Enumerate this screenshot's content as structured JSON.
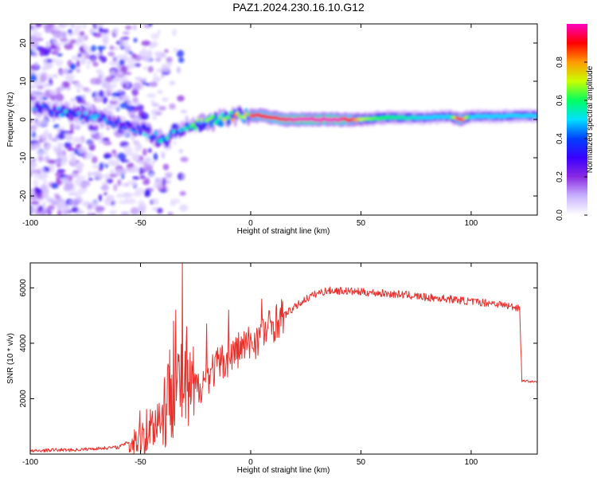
{
  "figure_title": "PAZ1.2024.230.16.10.G12",
  "colors": {
    "spectrum_stops": [
      "#ffffff",
      "#c9b3ff",
      "#8a2be2",
      "#3a00ff",
      "#0040ff",
      "#00e0ff",
      "#00ff60",
      "#c8ff00",
      "#ff9a00",
      "#ff0000",
      "#ff00c0"
    ],
    "snr_line": "#e8302a",
    "axes": "#000000"
  },
  "chart_data": [
    {
      "type": "heatmap",
      "xlabel": "Height of straight line (km)",
      "ylabel": "Frequency (Hz)",
      "xlim": [
        -100,
        130
      ],
      "ylim": [
        -25,
        25
      ],
      "xticks": [
        -100,
        -50,
        0,
        50,
        100
      ],
      "yticks": [
        -20,
        -10,
        0,
        10,
        20
      ],
      "colorbar": {
        "label": "Normalized spectral amplitude",
        "range": [
          0,
          1
        ],
        "ticks": [
          0.0,
          0.2,
          0.4,
          0.6,
          0.8
        ]
      },
      "ridge": {
        "x": [
          -95,
          -85,
          -75,
          -65,
          -55,
          -48,
          -42,
          -38,
          -35,
          -30,
          -25,
          -20,
          -15,
          -10,
          -5,
          0,
          5,
          10,
          15,
          20,
          30,
          40,
          45,
          50,
          60,
          70,
          80,
          90,
          95,
          100,
          110,
          120,
          130
        ],
        "frequency": [
          3,
          2,
          1,
          0,
          -2,
          -3,
          -5,
          -6,
          -3,
          -2,
          -1.5,
          -1,
          0,
          0.5,
          1,
          1,
          1,
          0.5,
          0,
          0,
          0,
          0,
          0,
          0,
          0.5,
          0.5,
          0.5,
          0.8,
          0,
          0.8,
          0.8,
          1,
          1
        ],
        "amplitude": [
          0.4,
          0.45,
          0.45,
          0.4,
          0.4,
          0.45,
          0.5,
          0.5,
          0.45,
          0.55,
          0.6,
          0.65,
          0.7,
          0.7,
          0.75,
          0.85,
          0.9,
          0.9,
          0.95,
          1,
          1,
          1,
          0.9,
          0.7,
          0.6,
          0.55,
          0.5,
          0.5,
          0.95,
          0.5,
          0.5,
          0.5,
          0.5
        ]
      },
      "noise_region": [
        -100,
        -50
      ]
    },
    {
      "type": "line",
      "xlabel": "Height of straight line (km)",
      "ylabel": "SNR (10 * v/v)",
      "xlim": [
        -100,
        130
      ],
      "ylim": [
        0,
        6900
      ],
      "xticks": [
        -100,
        -50,
        0,
        50,
        100
      ],
      "yticks": [
        2000,
        4000,
        6000
      ],
      "series": [
        {
          "x": [
            -100,
            -90,
            -80,
            -70,
            -60,
            -55,
            -50,
            -45,
            -40,
            -37,
            -35,
            -33,
            -31,
            -30,
            -28,
            -25,
            -20,
            -15,
            -10,
            -5,
            0,
            5,
            10,
            15,
            20,
            25,
            30,
            35,
            40,
            50,
            60,
            70,
            80,
            90,
            100,
            110,
            120,
            122,
            123,
            130
          ],
          "y": [
            100,
            150,
            150,
            200,
            250,
            450,
            700,
            1000,
            1500,
            2200,
            2400,
            2500,
            2600,
            2500,
            2100,
            2300,
            2800,
            3200,
            3500,
            3800,
            4000,
            4300,
            4700,
            5000,
            5300,
            5600,
            5800,
            5900,
            5900,
            5850,
            5800,
            5750,
            5650,
            5600,
            5500,
            5450,
            5300,
            5300,
            2650,
            2600
          ],
          "peaks": [
            {
              "x": -35,
              "y": 4800
            },
            {
              "x": -34,
              "y": 5200
            },
            {
              "x": -31,
              "y": 6900
            },
            {
              "x": -29,
              "y": 4600
            },
            {
              "x": -20,
              "y": 4700
            },
            {
              "x": -10,
              "y": 5200
            },
            {
              "x": 5,
              "y": 5600
            }
          ]
        }
      ]
    }
  ]
}
